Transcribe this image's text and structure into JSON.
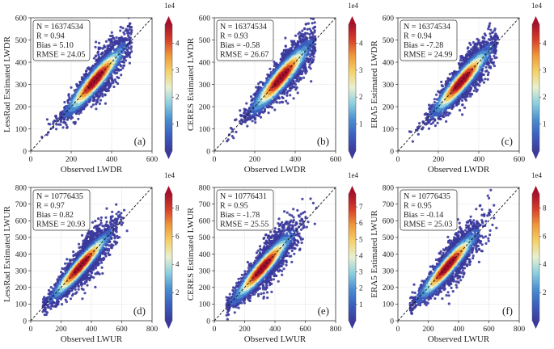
{
  "colors": {
    "colormap": [
      "#3b3a9c",
      "#3b5fc0",
      "#4a8fd0",
      "#8ccfe0",
      "#e8f0d0",
      "#f5d26a",
      "#f09a3a",
      "#d8402a",
      "#a8102a"
    ],
    "diagonal": "#111111"
  },
  "chart_data": [
    {
      "type": "scatter",
      "panel": "(a)",
      "xlabel": "Observed LWDR",
      "ylabel": "LessRad Estimated LWDR",
      "xlim": [
        0,
        600
      ],
      "ylim": [
        0,
        600
      ],
      "xticks": [
        "0",
        "200",
        "400",
        "600"
      ],
      "yticks": [
        "0",
        "100",
        "200",
        "300",
        "400",
        "500",
        "600"
      ],
      "stats": {
        "n": "N = 16374534",
        "r": "R = 0.94",
        "bias": "Bias = 5.10",
        "rmse": "RMSE = 24.05"
      },
      "cbar_ticks": [
        1,
        2,
        3,
        4
      ],
      "cbar_max": 4.7,
      "cbar_exp": "1e4",
      "cloud": {
        "xmin": 55,
        "xmax": 500,
        "core": 320,
        "spread": 0.11
      }
    },
    {
      "type": "scatter",
      "panel": "(b)",
      "xlabel": "Observed LWDR",
      "ylabel": "CERES Estimated LWDR",
      "xlim": [
        0,
        600
      ],
      "ylim": [
        0,
        600
      ],
      "xticks": [
        "0",
        "200",
        "400",
        "600"
      ],
      "yticks": [
        "0",
        "100",
        "200",
        "300",
        "400",
        "500",
        "600"
      ],
      "stats": {
        "n": "N = 16374534",
        "r": "R = 0.93",
        "bias": "Bias = -0.58",
        "rmse": "RMSE = 26.67"
      },
      "cbar_ticks": [
        1,
        2,
        3,
        4
      ],
      "cbar_max": 4.7,
      "cbar_exp": "1e4",
      "cloud": {
        "xmin": 55,
        "xmax": 500,
        "core": 330,
        "spread": 0.12
      }
    },
    {
      "type": "scatter",
      "panel": "(c)",
      "xlabel": "Observed LWDR",
      "ylabel": "ERA5 Estimated LWDR",
      "xlim": [
        0,
        600
      ],
      "ylim": [
        0,
        600
      ],
      "xticks": [
        "0",
        "200",
        "400",
        "600"
      ],
      "yticks": [
        "0",
        "100",
        "200",
        "300",
        "400",
        "500",
        "600"
      ],
      "stats": {
        "n": "N = 16374534",
        "r": "R = 0.94",
        "bias": "Bias = -7.28",
        "rmse": "RMSE = 24.99"
      },
      "cbar_ticks": [
        1,
        2,
        3,
        4
      ],
      "cbar_max": 4.7,
      "cbar_exp": "1e4",
      "cloud": {
        "xmin": 55,
        "xmax": 495,
        "core": 315,
        "spread": 0.11
      }
    },
    {
      "type": "scatter",
      "panel": "(d)",
      "xlabel": "Observed LWUR",
      "ylabel": "LessRad Estimated LWUR",
      "xlim": [
        0,
        800
      ],
      "ylim": [
        0,
        800
      ],
      "xticks": [
        "0",
        "200",
        "400",
        "600",
        "800"
      ],
      "yticks": [
        "0",
        "100",
        "200",
        "300",
        "400",
        "500",
        "600",
        "700",
        "800"
      ],
      "stats": {
        "n": "N = 10776435",
        "r": "R = 0.97",
        "bias": "Bias = 0.82",
        "rmse": "RMSE = 20.93"
      },
      "cbar_ticks": [
        2,
        4,
        6,
        8
      ],
      "cbar_max": 9,
      "cbar_exp": "1e4",
      "cloud": {
        "xmin": 80,
        "xmax": 670,
        "core": 330,
        "spread": 0.09
      }
    },
    {
      "type": "scatter",
      "panel": "(e)",
      "xlabel": "Observed LWUR",
      "ylabel": "CERES Estimated LWUR",
      "xlim": [
        0,
        800
      ],
      "ylim": [
        0,
        800
      ],
      "xticks": [
        "0",
        "200",
        "400",
        "600",
        "800"
      ],
      "yticks": [
        "0",
        "100",
        "200",
        "300",
        "400",
        "500",
        "600",
        "700",
        "800"
      ],
      "stats": {
        "n": "N = 10776431",
        "r": "R = 0.95",
        "bias": "Bias = -1.78",
        "rmse": "RMSE = 25.55"
      },
      "cbar_ticks": [
        1,
        2,
        3,
        4,
        5,
        6,
        7
      ],
      "cbar_max": 7.8,
      "cbar_exp": "1e4",
      "cloud": {
        "xmin": 80,
        "xmax": 680,
        "core": 320,
        "spread": 0.1
      }
    },
    {
      "type": "scatter",
      "panel": "(f)",
      "xlabel": "Observed LWUR",
      "ylabel": "ERA5 Estimated LWUR",
      "xlim": [
        0,
        800
      ],
      "ylim": [
        0,
        800
      ],
      "xticks": [
        "0",
        "200",
        "400",
        "600",
        "800"
      ],
      "yticks": [
        "0",
        "100",
        "200",
        "300",
        "400",
        "500",
        "600",
        "700",
        "800"
      ],
      "stats": {
        "n": "N = 10776435",
        "r": "R = 0.95",
        "bias": "Bias = -0.14",
        "rmse": "RMSE = 25.03"
      },
      "cbar_ticks": [
        2,
        4,
        6,
        8
      ],
      "cbar_max": 9,
      "cbar_exp": "1e4",
      "cloud": {
        "xmin": 80,
        "xmax": 670,
        "core": 330,
        "spread": 0.1
      }
    }
  ]
}
